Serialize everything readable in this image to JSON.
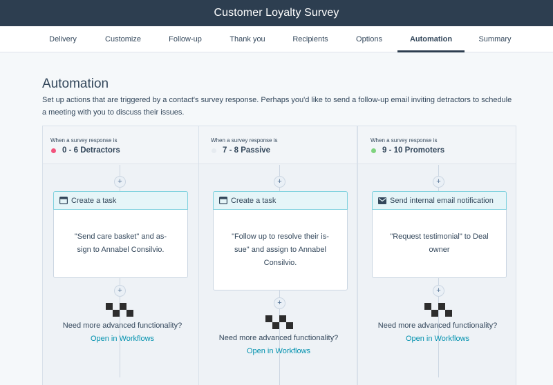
{
  "app_title": "Customer Loyalty Survey",
  "tabs": [
    {
      "label": "Delivery"
    },
    {
      "label": "Customize"
    },
    {
      "label": "Follow-up"
    },
    {
      "label": "Thank you"
    },
    {
      "label": "Recipients"
    },
    {
      "label": "Options"
    },
    {
      "label": "Automation"
    },
    {
      "label": "Summary"
    }
  ],
  "active_tab": "Automation",
  "page": {
    "title": "Automation",
    "description": "Set up actions that are triggered by a contact's survey response. Perhaps you'd like to send a follow-up email inviting detractors to schedule a meeting with you to discuss their issues."
  },
  "columns": [
    {
      "trigger_prefix": "When a survey response is",
      "name": "0 - 6 Detractors",
      "dot_color": "#f2547d",
      "action": {
        "icon": "task-icon",
        "label": "Create a task",
        "body": "\"Send care basket\" and as-sign to Annabel Consilvio."
      },
      "advanced_text": "Need more advanced functionality?",
      "advanced_link": "Open in Workflows"
    },
    {
      "trigger_prefix": "When a survey response is",
      "name": "7 - 8 Passive",
      "dot_color": "#e6ebf0",
      "action": {
        "icon": "task-icon",
        "label": "Create a task",
        "body": "\"Follow up to resolve their is-sue\" and assign to Annabel Consilvio."
      },
      "advanced_text": "Need more advanced functionality?",
      "advanced_link": "Open in Workflows"
    },
    {
      "trigger_prefix": "When a survey response is",
      "name": "9 - 10 Promoters",
      "dot_color": "#7fd37f",
      "action": {
        "icon": "email-icon",
        "label": "Send internal email notification",
        "body": "\"Request testimonial\" to Deal owner"
      },
      "advanced_text": "Need more advanced functionality?",
      "advanced_link": "Open in Workflows"
    }
  ],
  "plus_symbol": "+",
  "colors": {
    "topbar": "#2d3e50",
    "accent_link": "#0091ae",
    "card_header": "#e5f5f8",
    "card_header_border": "#7fd1de"
  }
}
